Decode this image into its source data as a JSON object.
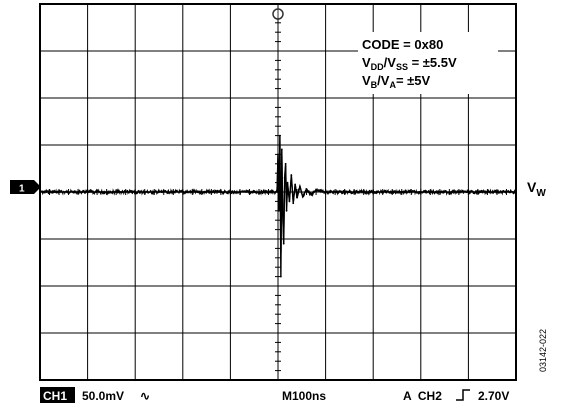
{
  "annotation": {
    "code": "CODE = 0x80",
    "vdd_vss": {
      "a": "V",
      "a_sub": "DD",
      "b": "/V",
      "b_sub": "SS",
      "rest": " = ±5.5V"
    },
    "vb_va": {
      "a": "V",
      "a_sub": "B",
      "b": "/V",
      "b_sub": "A",
      "rest": "= ±5V"
    }
  },
  "trace_label": {
    "main": "V",
    "sub": "W"
  },
  "channel_marker": "1",
  "bottom_bar": {
    "ch_box": "CH1",
    "volts_per_div": "50.0mV",
    "bw_symbol": "∿",
    "timebase": "M100ns",
    "trigger_label": "A  CH2",
    "trigger_level": "2.70V"
  },
  "figure_id": "03142-022",
  "chart_data": {
    "type": "line",
    "title": "",
    "xlabel": "",
    "ylabel": "",
    "grid": true,
    "divisions": {
      "x": 10,
      "y": 8
    },
    "volts_per_div_mV": 50,
    "time_per_div_ns": 100,
    "trigger_time_ns": 500,
    "series": [
      {
        "x_ns": [
          0,
          480,
          498,
          500,
          502,
          504,
          506,
          508,
          510,
          512,
          514,
          516,
          518,
          520,
          524,
          528,
          532,
          536,
          540,
          546,
          552,
          560,
          570,
          580,
          600,
          650,
          700,
          800,
          1000
        ],
        "y_mV": [
          0,
          0,
          0,
          40,
          -20,
          60,
          -90,
          45,
          -25,
          -55,
          15,
          30,
          -20,
          10,
          -10,
          18,
          -12,
          8,
          -6,
          6,
          -5,
          3,
          -3,
          2,
          0,
          0,
          0,
          0,
          0
        ]
      }
    ]
  }
}
